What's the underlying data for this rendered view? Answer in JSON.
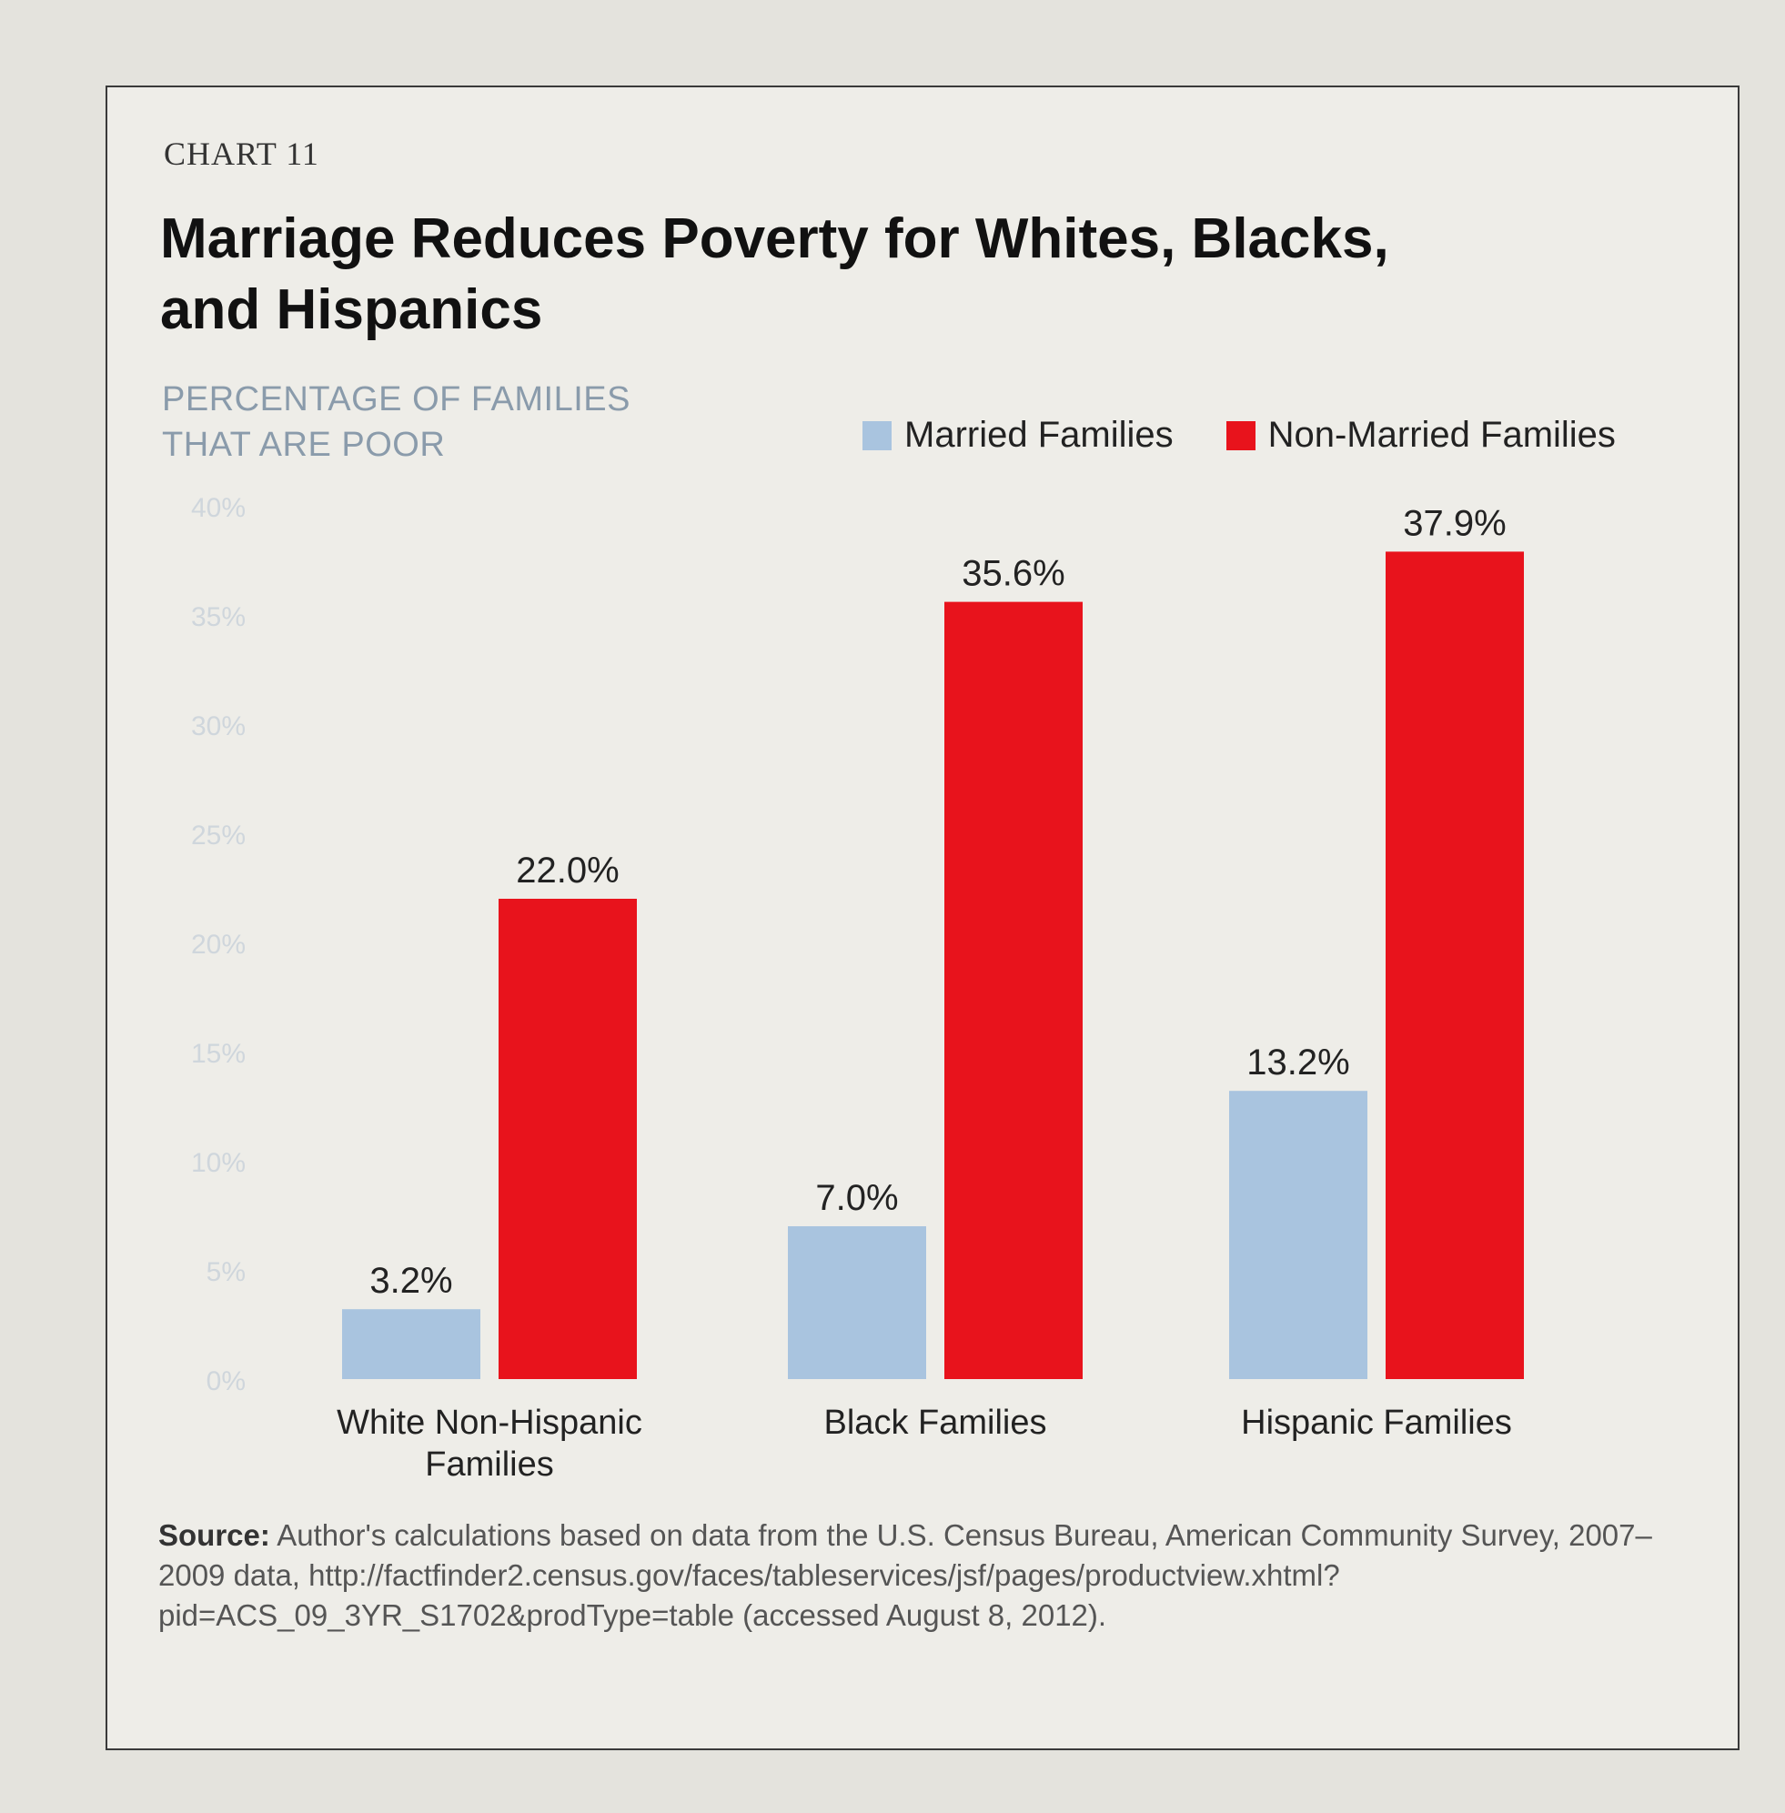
{
  "eyebrow": "CHART 11",
  "title": "Marriage Reduces Poverty for Whites, Blacks, and Hispanics",
  "source_label": "Source:",
  "source_text": "Author's calculations based on data from the U.S. Census Bureau, American Community Survey, 2007–2009 data, http://factfinder2.census.gov/faces/tableservices/jsf/pages/productview.xhtml?pid=ACS_09_3YR_S1702&prodType=table (accessed August 8, 2012).",
  "colors": {
    "married": "#a9c4df",
    "non_married": "#e8131c",
    "tick": "#cfd6dc"
  },
  "chart_data": {
    "type": "bar",
    "ylabel": "PERCENTAGE OF FAMILIES THAT ARE POOR",
    "ylim": [
      0,
      40
    ],
    "yticks": [
      0,
      5,
      10,
      15,
      20,
      25,
      30,
      35,
      40
    ],
    "ytick_labels": [
      "0%",
      "5%",
      "10%",
      "15%",
      "20%",
      "25%",
      "30%",
      "35%",
      "40%"
    ],
    "legend_position": "top-right",
    "grid": false,
    "categories": [
      "White Non-Hispanic Families",
      "Black Families",
      "Hispanic Families"
    ],
    "series": [
      {
        "name": "Married Families",
        "values": [
          3.2,
          7.0,
          13.2
        ],
        "labels": [
          "3.2%",
          "7.0%",
          "13.2%"
        ]
      },
      {
        "name": "Non-Married Families",
        "values": [
          22.0,
          35.6,
          37.9
        ],
        "labels": [
          "22.0%",
          "35.6%",
          "37.9%"
        ]
      }
    ]
  }
}
